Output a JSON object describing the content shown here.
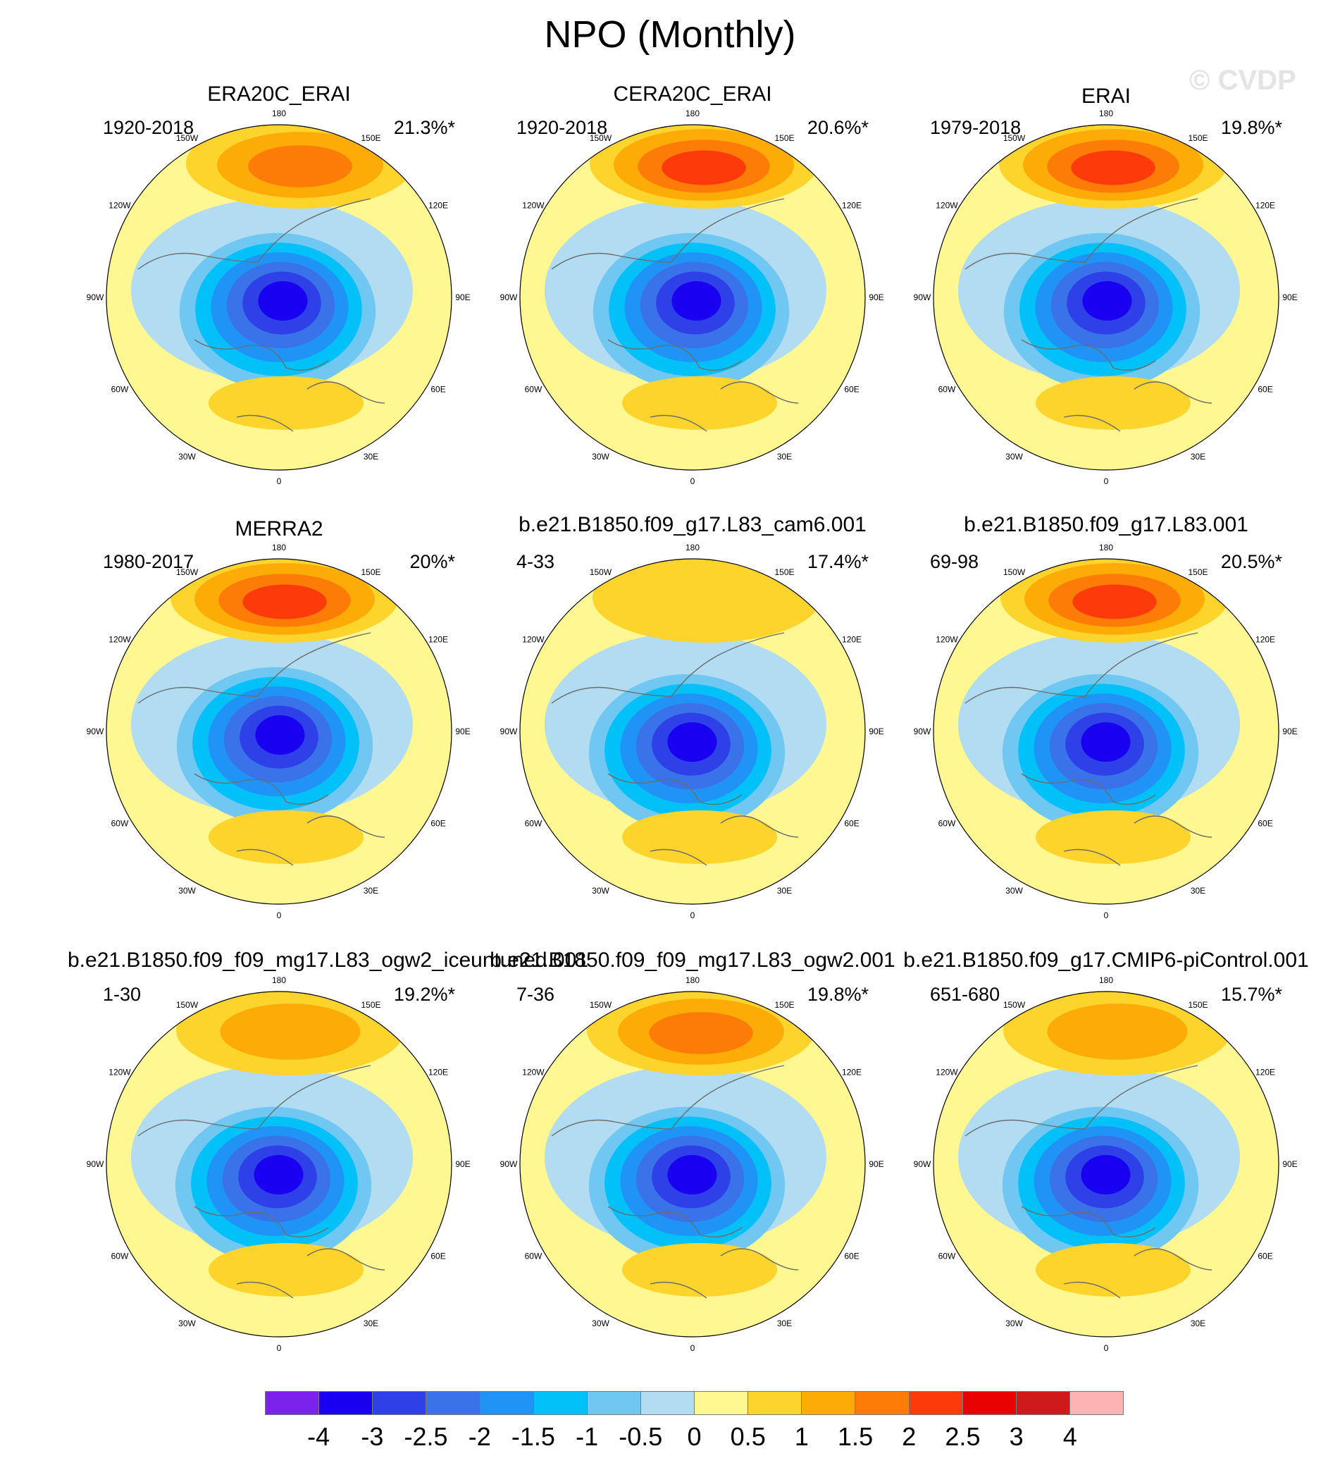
{
  "title": "NPO (Monthly)",
  "watermark": "© CVDP",
  "longitude_labels": [
    "180",
    "150E",
    "120E",
    "90E",
    "60E",
    "30E",
    "0",
    "30W",
    "60W",
    "90W",
    "120W",
    "150W"
  ],
  "panels": [
    {
      "title": "ERA20C_ERAI",
      "period": "1920-2018",
      "pct": "21.3%*",
      "pos": {
        "lat": -1.5,
        "lon": 1.5
      },
      "pos_max": 2.0,
      "neg": {
        "lat": 0.6,
        "lon": 0.3
      },
      "neg_max": -3.0
    },
    {
      "title": "CERA20C_ERAI",
      "period": "1920-2018",
      "pct": "20.6%*",
      "pos": {
        "lat": -1.4,
        "lon": 0.8
      },
      "pos_max": 2.5,
      "neg": {
        "lat": 0.6,
        "lon": 0.3
      },
      "neg_max": -3.0
    },
    {
      "title": "ERAI",
      "period": "1979-2018",
      "pct": "19.8%*",
      "pos": {
        "lat": -1.5,
        "lon": 0.5
      },
      "pos_max": 2.5,
      "neg": {
        "lat": 0.6,
        "lon": 0.1
      },
      "neg_max": -3.0
    },
    {
      "title": "MERRA2",
      "period": "1980-2017",
      "pct": "20%*",
      "pos": {
        "lat": -1.4,
        "lon": 0.4
      },
      "pos_max": 2.5,
      "neg": {
        "lat": 0.6,
        "lon": 0.1
      },
      "neg_max": -3.5
    },
    {
      "title": "b.e21.B1850.f09_g17.L83_cam6.001",
      "period": "4-33",
      "pct": "17.4%*",
      "pos": {
        "lat": -1.6,
        "lon": 1.0
      },
      "pos_max": 1.0,
      "neg": {
        "lat": 0.7,
        "lon": 0.0
      },
      "neg_max": -3.5
    },
    {
      "title": "b.e21.B1850.f09_g17.L83.001",
      "period": "69-98",
      "pct": "20.5%*",
      "pos": {
        "lat": -1.5,
        "lon": 0.6
      },
      "pos_max": 2.5,
      "neg": {
        "lat": 0.7,
        "lon": 0.0
      },
      "neg_max": -3.5
    },
    {
      "title": "b.e21.B1850.f09_f09_mg17.L83_ogw2_iceuntuned.001",
      "period": "1-30",
      "pct": "19.2%*",
      "pos": {
        "lat": -1.5,
        "lon": 0.8
      },
      "pos_max": 1.5,
      "neg": {
        "lat": 0.7,
        "lon": 0.0
      },
      "neg_max": -3.5
    },
    {
      "title": "b.e21.B1850.f09_f09_mg17.L83_ogw2.001",
      "period": "7-36",
      "pct": "19.8%*",
      "pos": {
        "lat": -1.5,
        "lon": 0.6
      },
      "pos_max": 2.0,
      "neg": {
        "lat": 0.7,
        "lon": 0.0
      },
      "neg_max": -3.5
    },
    {
      "title": "b.e21.B1850.f09_g17.CMIP6-piControl.001",
      "period": "651-680",
      "pct": "15.7%*",
      "pos": {
        "lat": -1.5,
        "lon": 0.8
      },
      "pos_max": 1.5,
      "neg": {
        "lat": 0.7,
        "lon": 0.0
      },
      "neg_max": -3.5
    }
  ],
  "colorbar": {
    "ticks": [
      "-4",
      "-3",
      "-2.5",
      "-2",
      "-1.5",
      "-1",
      "-0.5",
      "0",
      "0.5",
      "1",
      "1.5",
      "2",
      "2.5",
      "3",
      "4"
    ],
    "levels": [
      -4,
      -3,
      -2.5,
      -2,
      -1.5,
      -1,
      -0.5,
      0,
      0.5,
      1,
      1.5,
      2,
      2.5,
      3,
      4
    ],
    "colors": [
      "#7b22ec",
      "#1a00f0",
      "#2e40e8",
      "#3a72ea",
      "#1f94f6",
      "#02c0f8",
      "#70c8f2",
      "#b2dcf2",
      "#fef792",
      "#fcd42c",
      "#fdab06",
      "#fd7c08",
      "#fd3a0a",
      "#e80202",
      "#cf1a1c",
      "#fdb2b4"
    ]
  }
}
